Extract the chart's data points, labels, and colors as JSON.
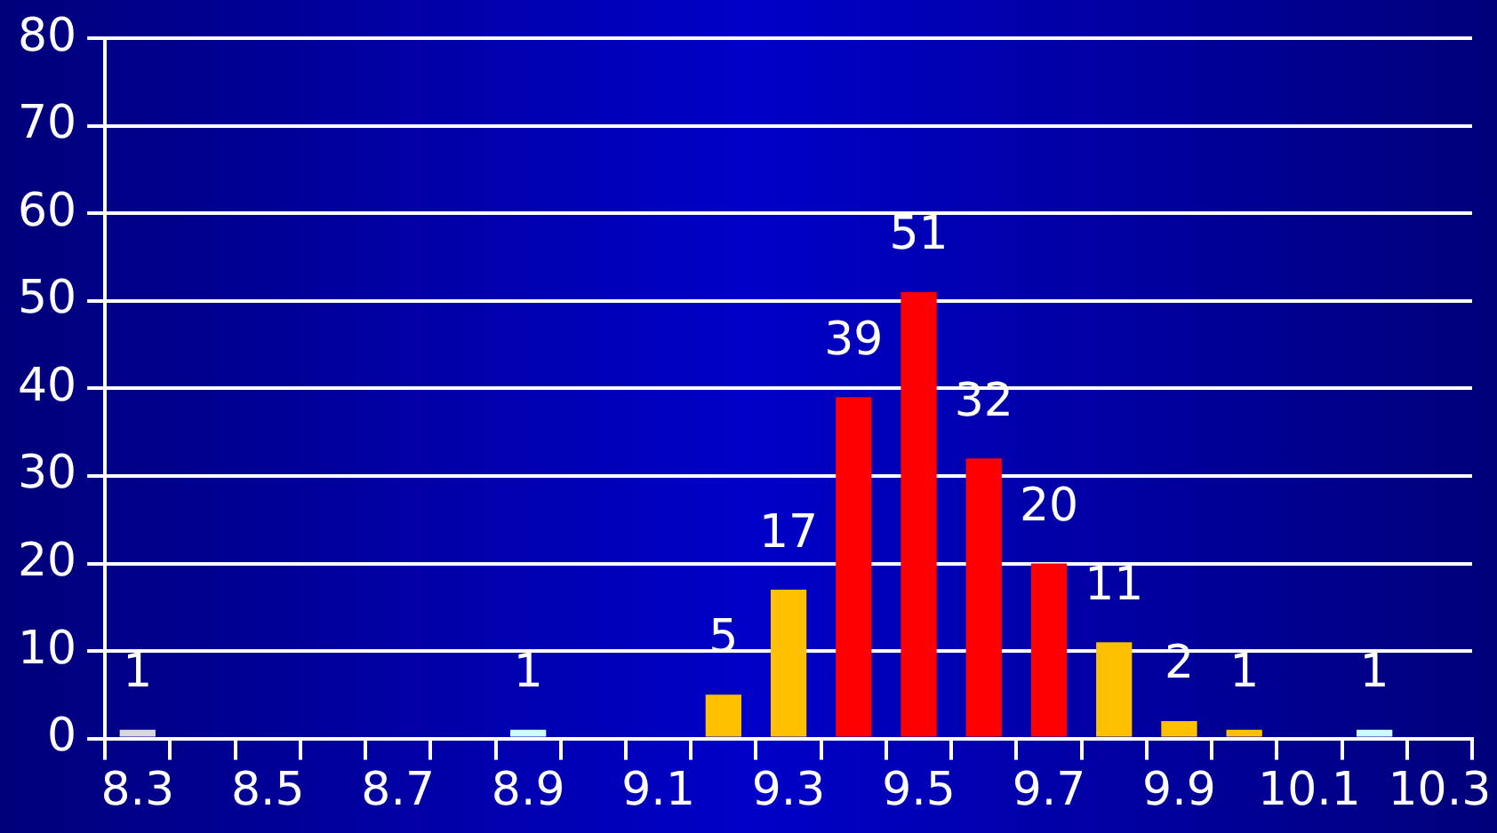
{
  "chart_data": {
    "type": "bar",
    "categories": [
      "8.3",
      null,
      "8.5",
      null,
      "8.7",
      null,
      "8.9",
      null,
      "9.1",
      null,
      "9.3",
      null,
      "9.5",
      null,
      "9.7",
      null,
      "9.9",
      null,
      "10.1",
      null,
      "10.3"
    ],
    "values": [
      1,
      0,
      0,
      0,
      0,
      0,
      1,
      0,
      0,
      5,
      17,
      39,
      51,
      32,
      20,
      11,
      2,
      1,
      0,
      1,
      0
    ],
    "colors": [
      "#d9d9d9",
      "#ffc000",
      "#ffc000",
      "#ffc000",
      "#ffc000",
      "#ffc000",
      "#ccffff",
      "#ffc000",
      "#ffc000",
      "#ffc000",
      "#ffc000",
      "#ff0000",
      "#ff0000",
      "#ff0000",
      "#ff0000",
      "#ffc000",
      "#ffc000",
      "#ffc000",
      "#ffc000",
      "#ccffff",
      "#ffc000"
    ],
    "value_labels": [
      "1",
      null,
      null,
      null,
      null,
      null,
      "1",
      null,
      null,
      "5",
      "17",
      "39",
      "51",
      "32",
      "20",
      "11",
      "2",
      "1",
      null,
      "1",
      null
    ],
    "ylim": [
      0,
      80
    ],
    "yticks": [
      0,
      10,
      20,
      30,
      40,
      50,
      60,
      70,
      80
    ],
    "grid": "y",
    "legend": false
  }
}
